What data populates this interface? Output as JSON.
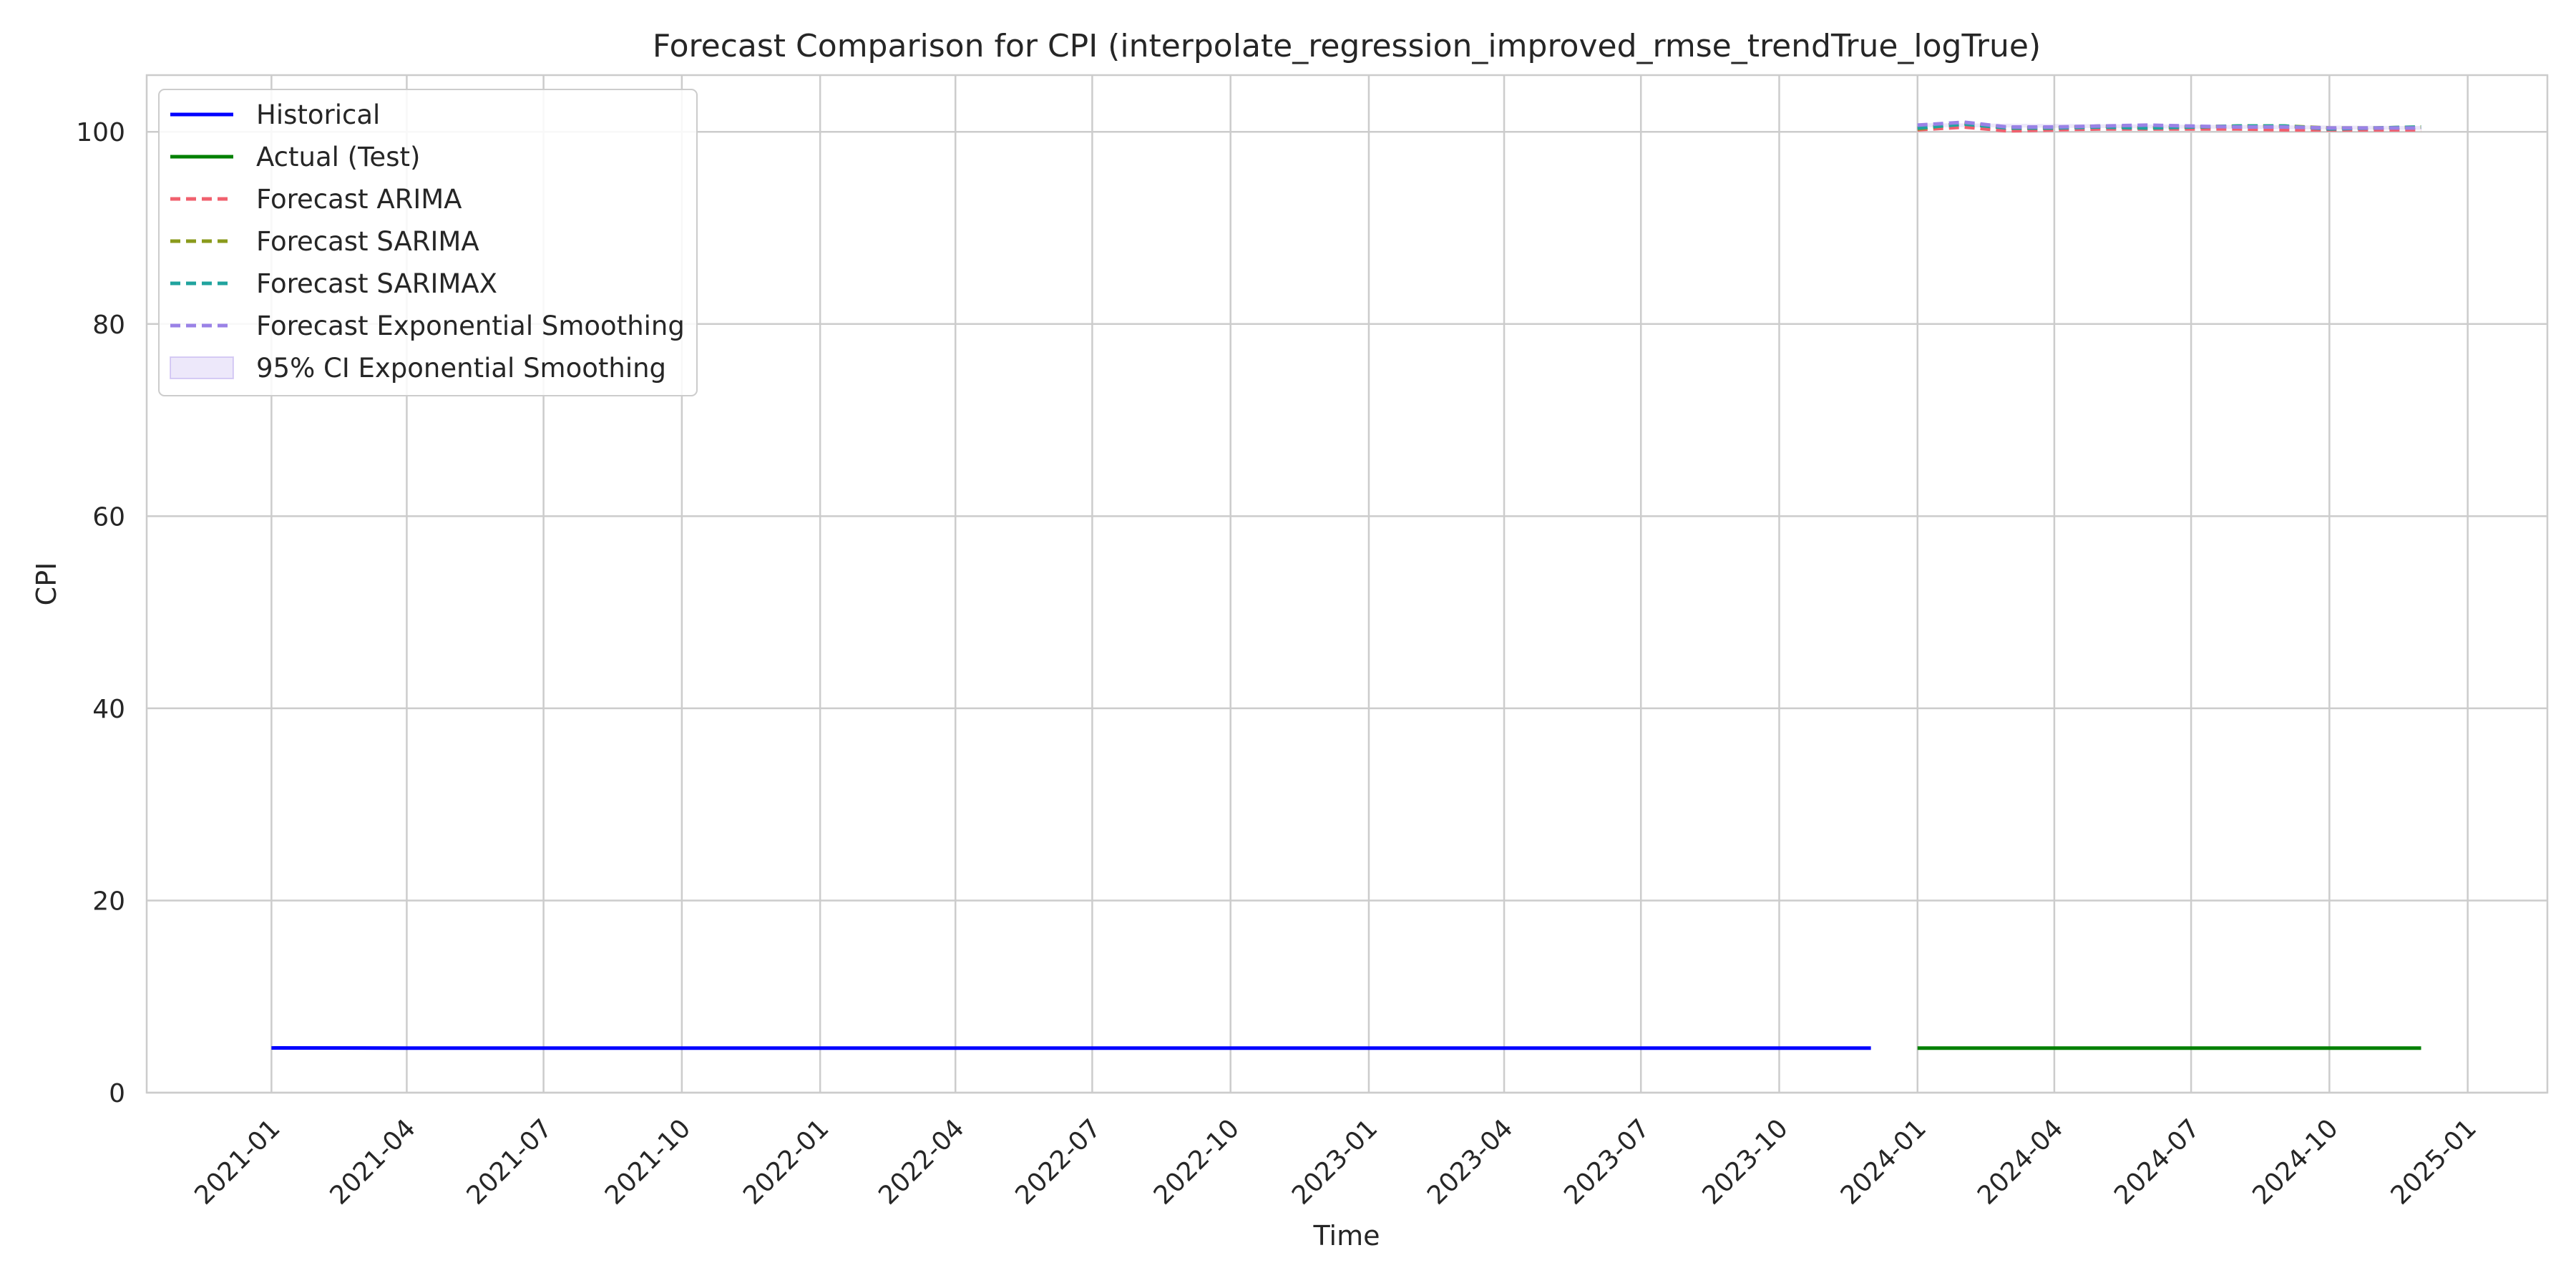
{
  "chart_data": {
    "type": "line",
    "title": "Forecast Comparison for CPI (interpolate_regression_improved_rmse_trendTrue_logTrue)",
    "xlabel": "Time",
    "ylabel": "CPI",
    "xlim": [
      "2020-10-10",
      "2025-02-23"
    ],
    "ylim": [
      0,
      105.9
    ],
    "grid": true,
    "legend_position": "upper left",
    "x_tick_labels": [
      "2021-01",
      "2021-04",
      "2021-07",
      "2021-10",
      "2022-01",
      "2022-04",
      "2022-07",
      "2022-10",
      "2023-01",
      "2023-04",
      "2023-07",
      "2023-10",
      "2024-01",
      "2024-04",
      "2024-07",
      "2024-10",
      "2025-01"
    ],
    "y_ticks": [
      0,
      20,
      40,
      60,
      80,
      100
    ],
    "y_tick_labels": [
      "0",
      "20",
      "40",
      "60",
      "80",
      "100"
    ],
    "series": [
      {
        "name": "Historical",
        "style": "solid",
        "color": "#0000ff",
        "x": [
          "2021-01-01",
          "2021-04-01",
          "2021-07-01",
          "2021-10-01",
          "2022-01-01",
          "2022-04-01",
          "2022-07-01",
          "2022-10-01",
          "2023-01-01",
          "2023-04-01",
          "2023-07-01",
          "2023-10-01",
          "2023-12-01"
        ],
        "y": [
          4.65,
          4.64,
          4.64,
          4.64,
          4.64,
          4.64,
          4.64,
          4.64,
          4.64,
          4.64,
          4.64,
          4.64,
          4.64
        ]
      },
      {
        "name": "Actual (Test)",
        "style": "solid",
        "color": "#008000",
        "x": [
          "2024-01-01",
          "2024-04-01",
          "2024-07-01",
          "2024-10-01",
          "2024-12-01"
        ],
        "y": [
          4.64,
          4.64,
          4.64,
          4.64,
          4.64
        ]
      },
      {
        "name": "Forecast ARIMA",
        "style": "dashed",
        "color": "#f0606e",
        "x": [
          "2024-01-01",
          "2024-02-01",
          "2024-03-01",
          "2024-04-01",
          "2024-05-01",
          "2024-06-01",
          "2024-07-01",
          "2024-08-01",
          "2024-09-01",
          "2024-10-01",
          "2024-11-01",
          "2024-12-01"
        ],
        "y": [
          100.2,
          100.5,
          100.1,
          100.2,
          100.3,
          100.3,
          100.3,
          100.3,
          100.2,
          100.2,
          100.2,
          100.2
        ]
      },
      {
        "name": "Forecast SARIMA",
        "style": "dashed",
        "color": "#8a9a1c",
        "x": [
          "2024-01-01",
          "2024-02-01",
          "2024-03-01",
          "2024-04-01",
          "2024-05-01",
          "2024-06-01",
          "2024-07-01",
          "2024-08-01",
          "2024-09-01",
          "2024-10-01",
          "2024-11-01",
          "2024-12-01"
        ],
        "y": [
          100.3,
          100.9,
          100.4,
          100.4,
          100.6,
          100.4,
          100.5,
          100.6,
          100.6,
          100.4,
          100.4,
          100.5
        ]
      },
      {
        "name": "Forecast SARIMAX",
        "style": "dashed",
        "color": "#20a39e",
        "x": [
          "2024-01-01",
          "2024-02-01",
          "2024-03-01",
          "2024-04-01",
          "2024-05-01",
          "2024-06-01",
          "2024-07-01",
          "2024-08-01",
          "2024-09-01",
          "2024-10-01",
          "2024-11-01",
          "2024-12-01"
        ],
        "y": [
          100.4,
          100.8,
          100.4,
          100.4,
          100.5,
          100.4,
          100.5,
          100.6,
          100.6,
          100.3,
          100.4,
          100.5
        ]
      },
      {
        "name": "Forecast Exponential Smoothing",
        "style": "dashed",
        "color": "#9a82e6",
        "x": [
          "2024-01-01",
          "2024-02-01",
          "2024-03-01",
          "2024-04-01",
          "2024-05-01",
          "2024-06-01",
          "2024-07-01",
          "2024-08-01",
          "2024-09-01",
          "2024-10-01",
          "2024-11-01",
          "2024-12-01"
        ],
        "y": [
          100.7,
          101.0,
          100.5,
          100.5,
          100.6,
          100.7,
          100.6,
          100.5,
          100.5,
          100.4,
          100.4,
          100.4
        ]
      }
    ],
    "bands": [
      {
        "name": "95% CI Exponential Smoothing",
        "color": "#9a82e6",
        "x": [
          "2024-01-01",
          "2024-12-01"
        ],
        "lower": [
          100.5,
          100.2
        ],
        "upper": [
          100.9,
          100.6
        ]
      }
    ]
  }
}
